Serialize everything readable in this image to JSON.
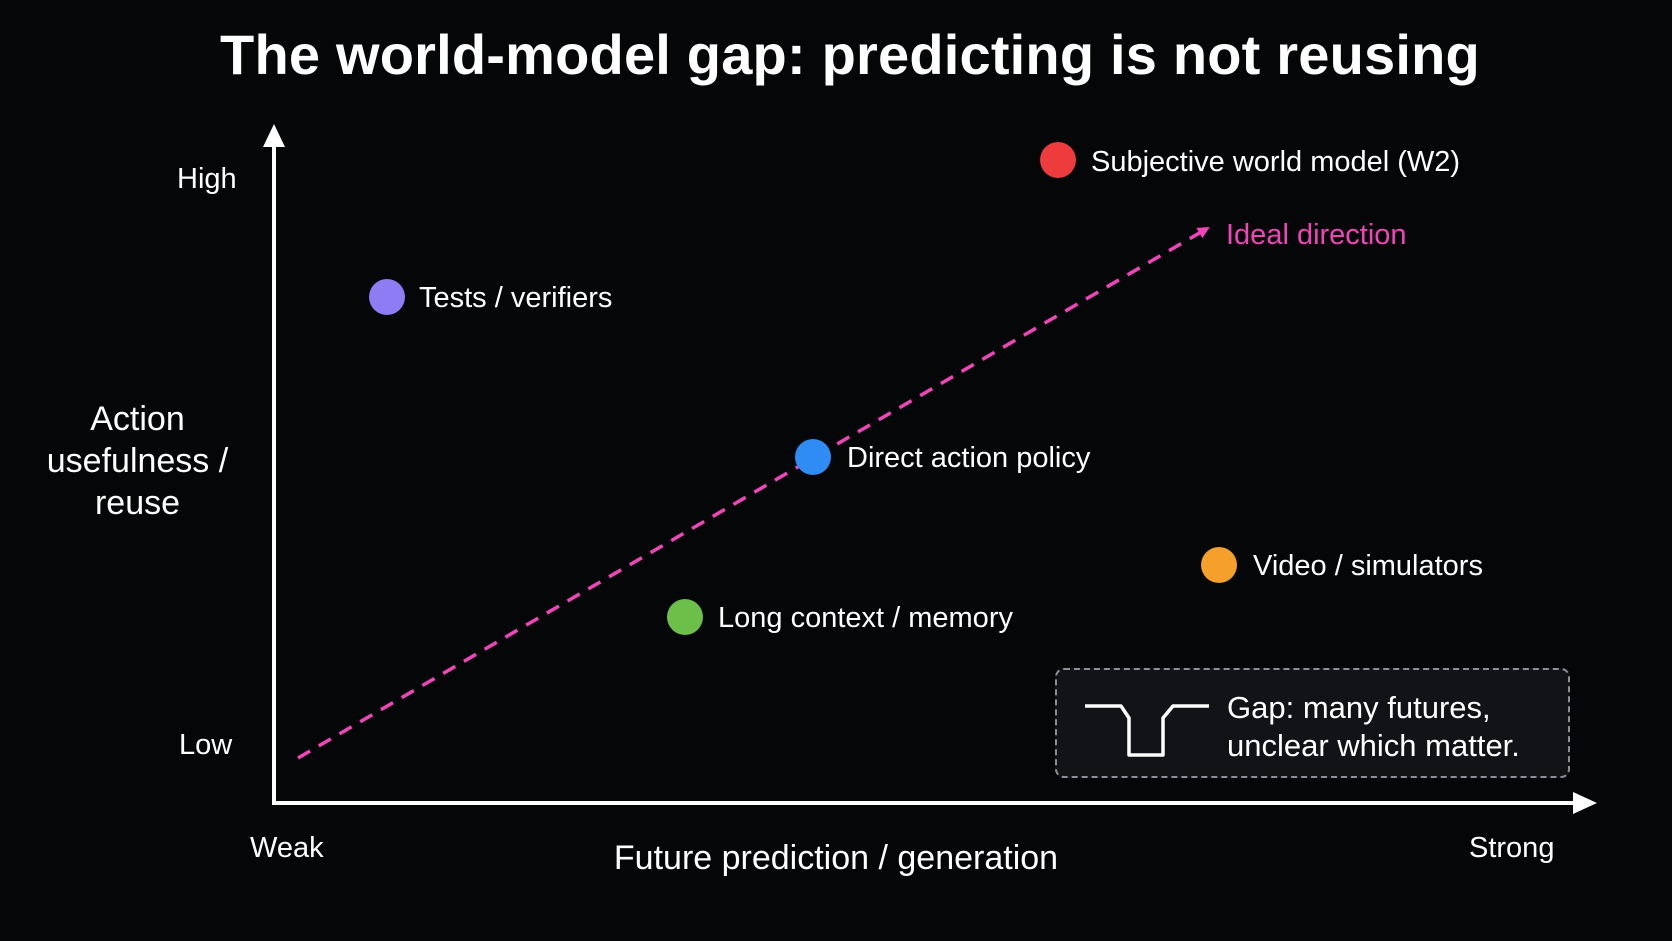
{
  "title": "The world-model gap: predicting is not reusing",
  "y_axis": {
    "title_lines": [
      "Action",
      "usefulness /",
      "reuse"
    ],
    "high_label": "High",
    "low_label": "Low"
  },
  "x_axis": {
    "title": "Future prediction / generation",
    "weak_label": "Weak",
    "strong_label": "Strong"
  },
  "ideal_direction": {
    "label": "Ideal direction",
    "color": "#f045b9"
  },
  "points": [
    {
      "label": "Tests / verifiers",
      "color": "#8e7cf4"
    },
    {
      "label": "Direct action policy",
      "color": "#2f8cf4"
    },
    {
      "label": "Long context / memory",
      "color": "#6cc04a"
    },
    {
      "label": "Subjective world model (W2)",
      "color": "#ee3b3b"
    },
    {
      "label": "Video / simulators",
      "color": "#f5a02a"
    }
  ],
  "gap_note": {
    "line1": "Gap: many futures,",
    "line2": "unclear which matter."
  }
}
